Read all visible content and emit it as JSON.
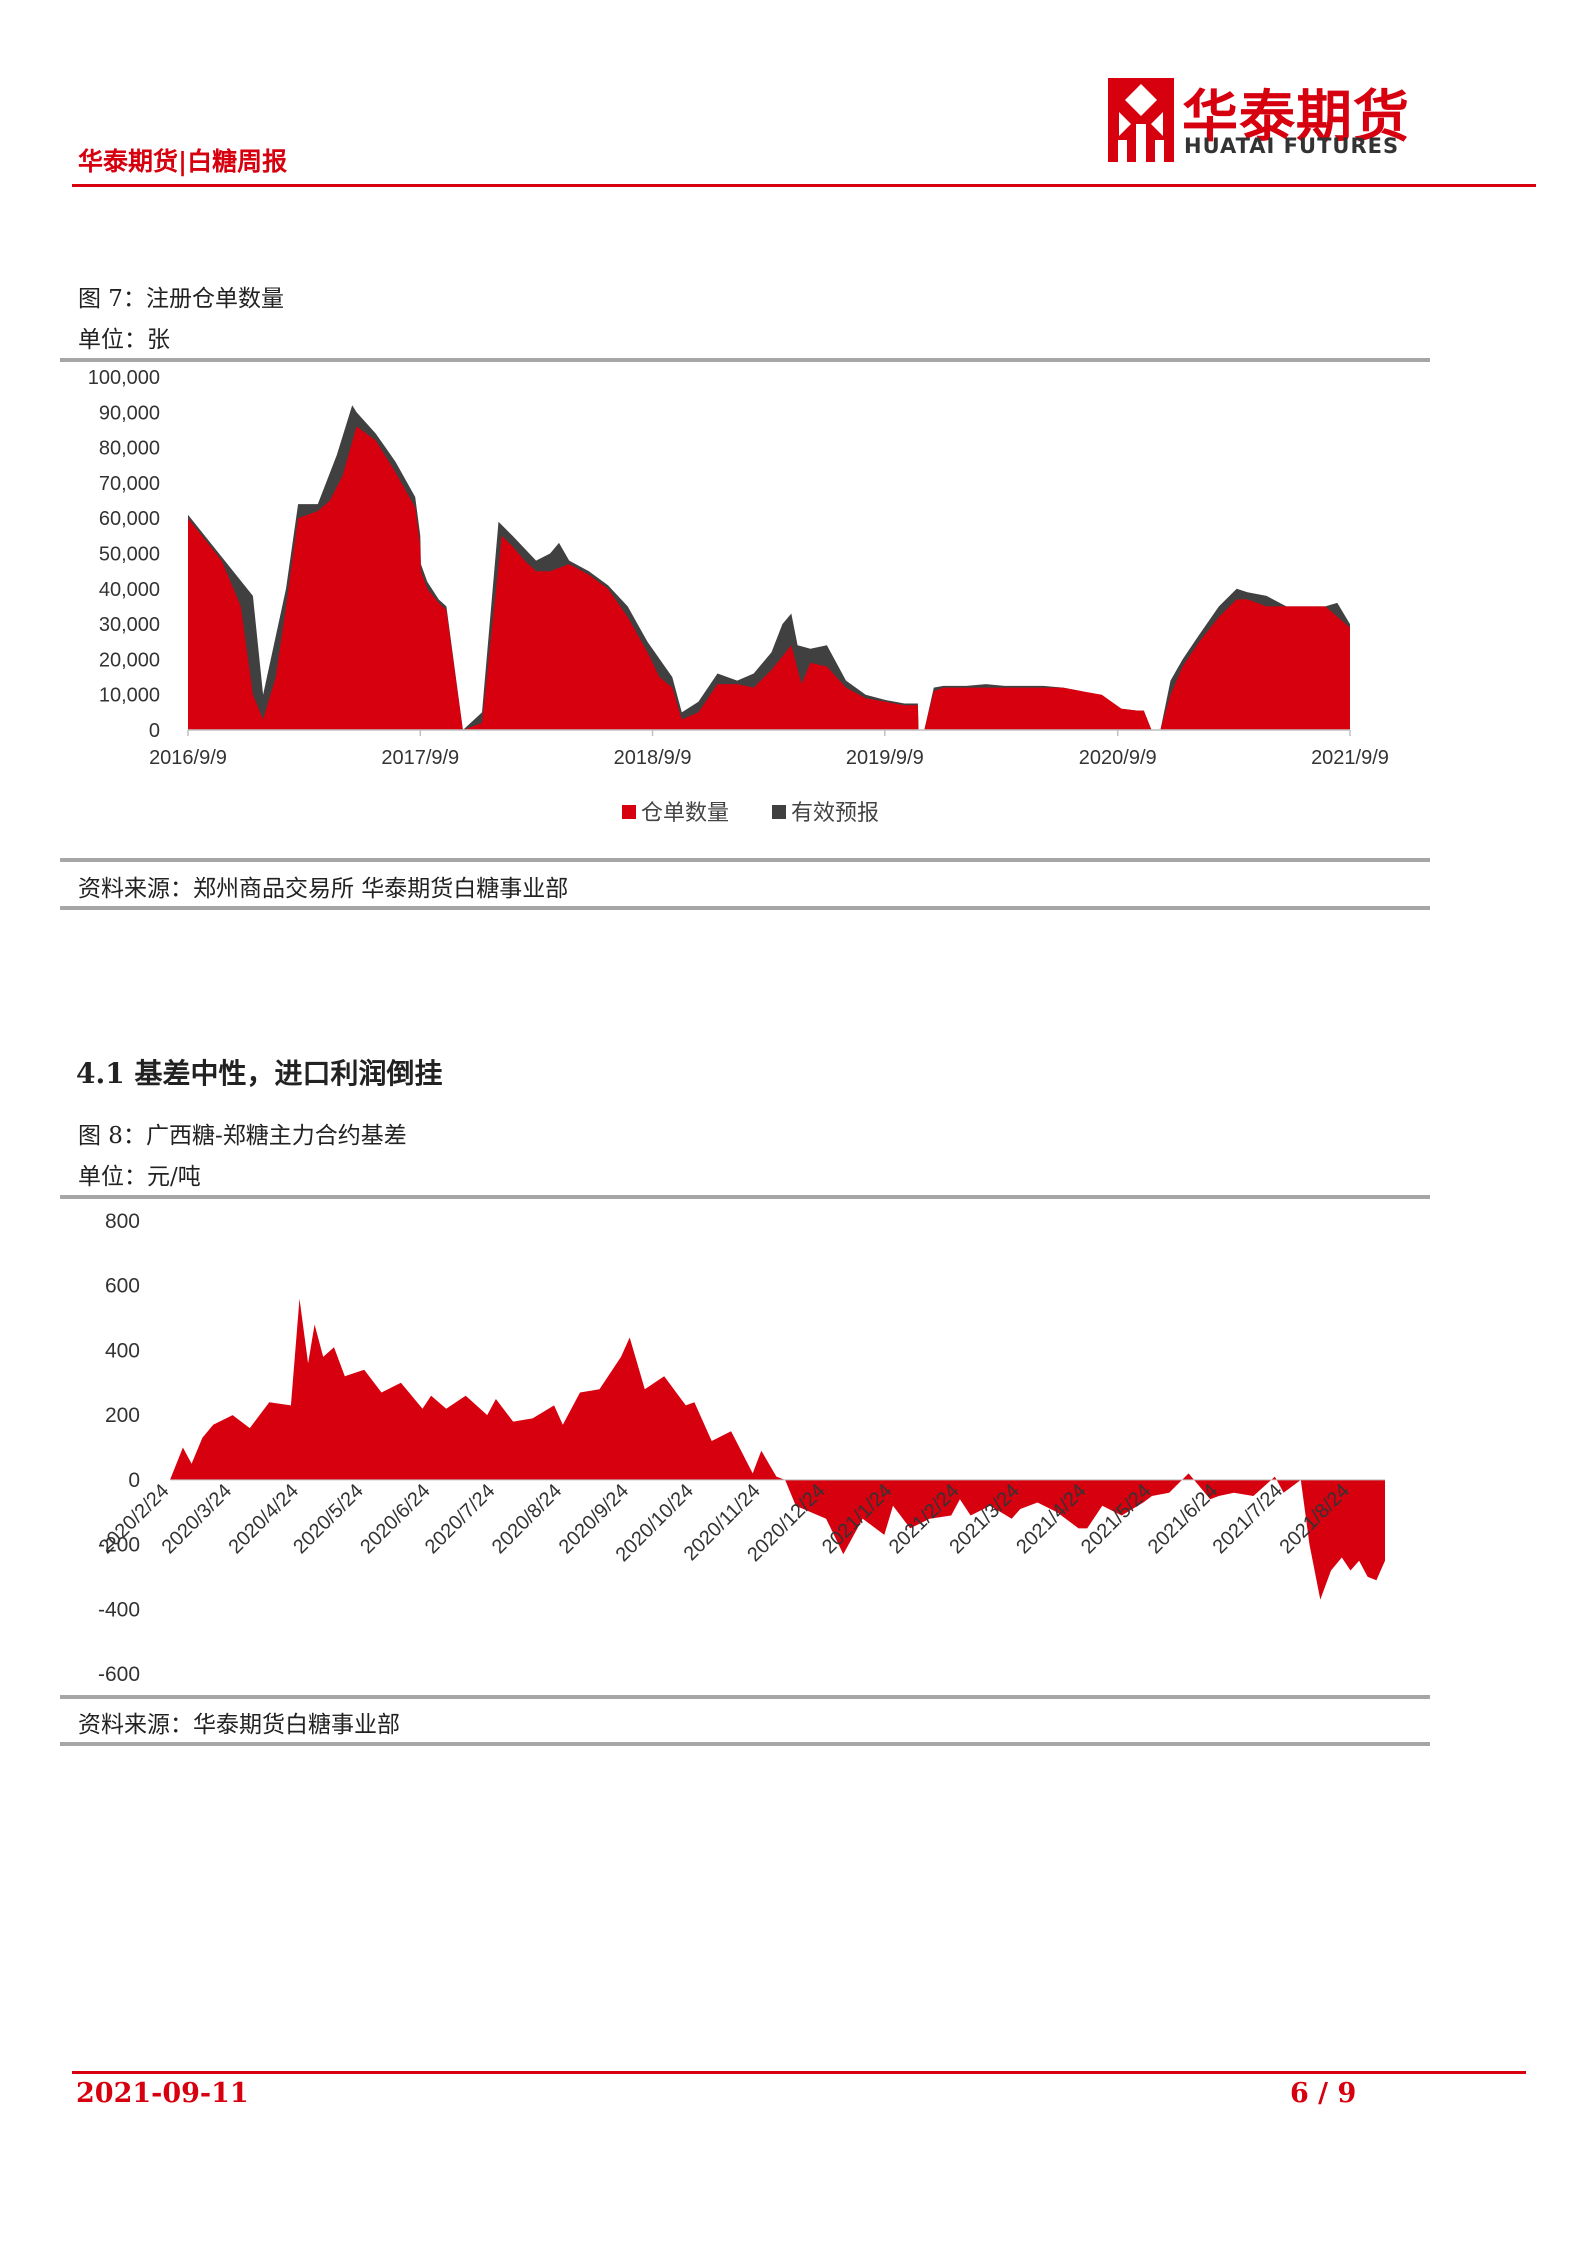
{
  "header": {
    "title": "华泰期货|白糖周报",
    "logo_cn": "华泰期货",
    "logo_en": "HUATAI FUTURES"
  },
  "figure7": {
    "title": "图 7：注册仓单数量",
    "unit": "单位：张",
    "source": "资料来源：郑州商品交易所  华泰期货白糖事业部"
  },
  "section": {
    "title": "4.1  基差中性，进口利润倒挂"
  },
  "figure8": {
    "title": "图 8：广西糖-郑糖主力合约基差",
    "unit": "单位：元/吨",
    "source": "资料来源：华泰期货白糖事业部"
  },
  "footer": {
    "date": "2021-09-11",
    "page": "6 / 9"
  },
  "colors": {
    "brand_red": "#d7000f",
    "dark_series": "#404040",
    "rule_gray": "#a6a6a6"
  },
  "chart_data": [
    {
      "type": "area",
      "title": "",
      "ylim": [
        0,
        100000
      ],
      "yticks": [
        0,
        10000,
        20000,
        30000,
        40000,
        50000,
        60000,
        70000,
        80000,
        90000,
        100000
      ],
      "ytick_labels": [
        "0",
        "10,000",
        "20,000",
        "30,000",
        "40,000",
        "50,000",
        "60,000",
        "70,000",
        "80,000",
        "90,000",
        "100,000"
      ],
      "xtick_labels": [
        "2016/9/9",
        "2017/9/9",
        "2018/9/9",
        "2019/9/9",
        "2020/9/9",
        "2021/9/9"
      ],
      "legend_position": "bottom",
      "series": [
        {
          "name": "仓单数量",
          "color": "#d7000f",
          "x": [
            "2016/9/9",
            "2016/10/1",
            "2016/11/1",
            "2016/12/1",
            "2016/12/20",
            "2017/1/5",
            "2017/1/25",
            "2017/2/10",
            "2017/3/1",
            "2017/4/1",
            "2017/4/20",
            "2017/5/10",
            "2017/6/1",
            "2017/7/1",
            "2017/8/1",
            "2017/9/1",
            "2017/9/9",
            "2017/9/10",
            "2017/9/20",
            "2017/10/8",
            "2017/10/20",
            "2017/11/15",
            "2017/12/15",
            "2018/1/15",
            "2018/2/1",
            "2018/2/20",
            "2018/3/10",
            "2018/4/1",
            "2018/5/1",
            "2018/6/1",
            "2018/7/1",
            "2018/8/1",
            "2018/9/1",
            "2018/9/20",
            "2018/10/10",
            "2018/10/25",
            "2018/11/20",
            "2018/12/20",
            "2019/1/20",
            "2019/2/15",
            "2019/3/15",
            "2019/4/15",
            "2019/5/1",
            "2019/5/15",
            "2019/6/10",
            "2019/7/10",
            "2019/8/10",
            "2019/9/10",
            "2019/10/10",
            "2019/10/31",
            "2019/11/1",
            "2019/11/10",
            "2019/11/25",
            "2019/12/10",
            "2020/1/15",
            "2020/2/15",
            "2020/3/15",
            "2020/4/15",
            "2020/5/15",
            "2020/6/15",
            "2020/7/15",
            "2020/8/15",
            "2020/9/15",
            "2020/10/10",
            "2020/10/20",
            "2020/11/1",
            "2020/11/15",
            "2020/12/1",
            "2020/12/20",
            "2021/1/15",
            "2021/2/15",
            "2021/3/15",
            "2021/4/1",
            "2021/5/1",
            "2021/6/1",
            "2021/7/1",
            "2021/8/1",
            "2021/9/9"
          ],
          "values": [
            60000,
            55000,
            48000,
            35000,
            10000,
            3000,
            15000,
            35000,
            60000,
            62000,
            65000,
            72000,
            86000,
            82000,
            73000,
            63000,
            52000,
            45000,
            40000,
            36000,
            34000,
            0,
            2000,
            55000,
            52000,
            48000,
            45000,
            45000,
            47000,
            44000,
            40000,
            32000,
            22000,
            15000,
            12000,
            3000,
            5000,
            13000,
            13000,
            12000,
            17000,
            24000,
            13000,
            19000,
            18000,
            12000,
            9000,
            8000,
            7000,
            7000,
            0,
            0,
            11000,
            12000,
            12000,
            12000,
            12000,
            12000,
            12000,
            12000,
            11000,
            10000,
            6000,
            5500,
            5500,
            0,
            0,
            10000,
            18000,
            25000,
            32000,
            37000,
            37000,
            35000,
            35000,
            35000,
            35000,
            29000
          ]
        },
        {
          "name": "有效预报",
          "color": "#404040",
          "x": [
            "2016/9/9",
            "2016/12/20",
            "2017/1/5",
            "2017/2/10",
            "2017/3/1",
            "2017/4/1",
            "2017/5/1",
            "2017/5/25",
            "2017/6/1",
            "2017/7/1",
            "2017/8/1",
            "2017/9/1",
            "2017/9/9",
            "2017/9/10",
            "2017/9/20",
            "2017/10/8",
            "2017/10/20",
            "2017/11/15",
            "2017/12/15",
            "2018/1/10",
            "2018/2/1",
            "2018/3/10",
            "2018/4/1",
            "2018/4/15",
            "2018/5/1",
            "2018/6/1",
            "2018/7/1",
            "2018/8/1",
            "2018/9/1",
            "2018/10/10",
            "2018/10/25",
            "2018/11/20",
            "2018/12/20",
            "2019/1/20",
            "2019/2/15",
            "2019/3/15",
            "2019/4/1",
            "2019/4/15",
            "2019/4/25",
            "2019/5/15",
            "2019/6/10",
            "2019/7/10",
            "2019/8/10",
            "2019/9/10",
            "2019/10/10",
            "2019/10/31",
            "2019/11/1",
            "2019/11/10",
            "2019/11/25",
            "2019/12/10",
            "2020/1/15",
            "2020/2/15",
            "2020/3/15",
            "2020/4/15",
            "2020/5/15",
            "2020/6/15",
            "2020/7/15",
            "2020/8/15",
            "2020/9/15",
            "2020/10/10",
            "2020/10/20",
            "2020/11/1",
            "2020/11/15",
            "2020/12/1",
            "2020/12/20",
            "2021/1/15",
            "2021/2/15",
            "2021/3/15",
            "2021/4/1",
            "2021/5/1",
            "2021/6/1",
            "2021/7/1",
            "2021/8/1",
            "2021/8/20",
            "2021/9/9"
          ],
          "values": [
            61000,
            38000,
            10000,
            40000,
            64000,
            64000,
            78000,
            92000,
            90000,
            84000,
            76000,
            66000,
            55000,
            47000,
            42000,
            37000,
            35000,
            0,
            5000,
            59000,
            55000,
            48000,
            50000,
            53000,
            48000,
            45000,
            41000,
            35000,
            25000,
            15000,
            5000,
            8000,
            16000,
            14000,
            16000,
            22000,
            30000,
            33000,
            24000,
            23000,
            24000,
            14000,
            10000,
            8500,
            7500,
            7500,
            0,
            0,
            12000,
            12500,
            12500,
            13000,
            12500,
            12500,
            12500,
            12000,
            11000,
            9000,
            6000,
            5500,
            5500,
            0,
            0,
            14000,
            20000,
            27000,
            35000,
            40000,
            39000,
            38000,
            35000,
            35000,
            35000,
            36000,
            30000
          ]
        }
      ]
    },
    {
      "type": "area",
      "title": "",
      "ylim": [
        -600,
        800
      ],
      "yticks": [
        -600,
        -400,
        -200,
        0,
        200,
        400,
        600,
        800
      ],
      "ytick_labels": [
        "-600",
        "-400",
        "-200",
        "0",
        "200",
        "400",
        "600",
        "800"
      ],
      "xtick_labels": [
        "2020/2/24",
        "2020/3/24",
        "2020/4/24",
        "2020/5/24",
        "2020/6/24",
        "2020/7/24",
        "2020/8/24",
        "2020/9/24",
        "2020/10/24",
        "2020/11/24",
        "2020/12/24",
        "2021/1/24",
        "2021/2/24",
        "2021/3/24",
        "2021/4/24",
        "2021/5/24",
        "2021/6/24",
        "2021/7/24",
        "2021/8/24"
      ],
      "legend_position": "none",
      "series": [
        {
          "color": "#d7000f",
          "x": [
            "2020/2/24",
            "2020/3/1",
            "2020/3/5",
            "2020/3/10",
            "2020/3/15",
            "2020/3/24",
            "2020/4/1",
            "2020/4/10",
            "2020/4/20",
            "2020/4/24",
            "2020/4/28",
            "2020/5/1",
            "2020/5/5",
            "2020/5/10",
            "2020/5/15",
            "2020/5/24",
            "2020/6/1",
            "2020/6/10",
            "2020/6/20",
            "2020/6/24",
            "2020/7/1",
            "2020/7/10",
            "2020/7/20",
            "2020/7/24",
            "2020/8/1",
            "2020/8/10",
            "2020/8/20",
            "2020/8/24",
            "2020/9/1",
            "2020/9/10",
            "2020/9/20",
            "2020/9/24",
            "2020/10/1",
            "2020/10/10",
            "2020/10/20",
            "2020/10/24",
            "2020/11/1",
            "2020/11/10",
            "2020/11/20",
            "2020/11/24",
            "2020/12/1",
            "2020/12/5",
            "2020/12/10",
            "2020/12/24",
            "2021/1/1",
            "2021/1/10",
            "2021/1/20",
            "2021/1/24",
            "2021/2/1",
            "2021/2/10",
            "2021/2/20",
            "2021/2/24",
            "2021/3/1",
            "2021/3/10",
            "2021/3/20",
            "2021/3/24",
            "2021/4/1",
            "2021/4/10",
            "2021/4/20",
            "2021/4/24",
            "2021/5/1",
            "2021/5/10",
            "2021/5/20",
            "2021/5/24",
            "2021/6/1",
            "2021/6/10",
            "2021/6/20",
            "2021/6/24",
            "2021/7/1",
            "2021/7/10",
            "2021/7/20",
            "2021/7/24",
            "2021/8/1",
            "2021/8/5",
            "2021/8/10",
            "2021/8/15",
            "2021/8/20",
            "2021/8/24",
            "2021/8/28",
            "2021/9/1",
            "2021/9/5",
            "2021/9/9"
          ],
          "values": [
            0,
            100,
            50,
            130,
            170,
            200,
            160,
            240,
            230,
            560,
            360,
            480,
            380,
            410,
            320,
            340,
            270,
            300,
            220,
            260,
            220,
            260,
            200,
            250,
            180,
            190,
            230,
            170,
            270,
            280,
            380,
            440,
            280,
            320,
            230,
            240,
            120,
            150,
            20,
            90,
            10,
            0,
            -80,
            -120,
            -230,
            -120,
            -170,
            -80,
            -150,
            -120,
            -110,
            -60,
            -110,
            -80,
            -120,
            -90,
            -70,
            -100,
            -150,
            -150,
            -80,
            -110,
            -70,
            -50,
            -40,
            20,
            -60,
            -50,
            -40,
            -50,
            10,
            -40,
            0,
            -200,
            -370,
            -280,
            -240,
            -280,
            -250,
            -300,
            -310,
            -250
          ]
        }
      ]
    }
  ]
}
